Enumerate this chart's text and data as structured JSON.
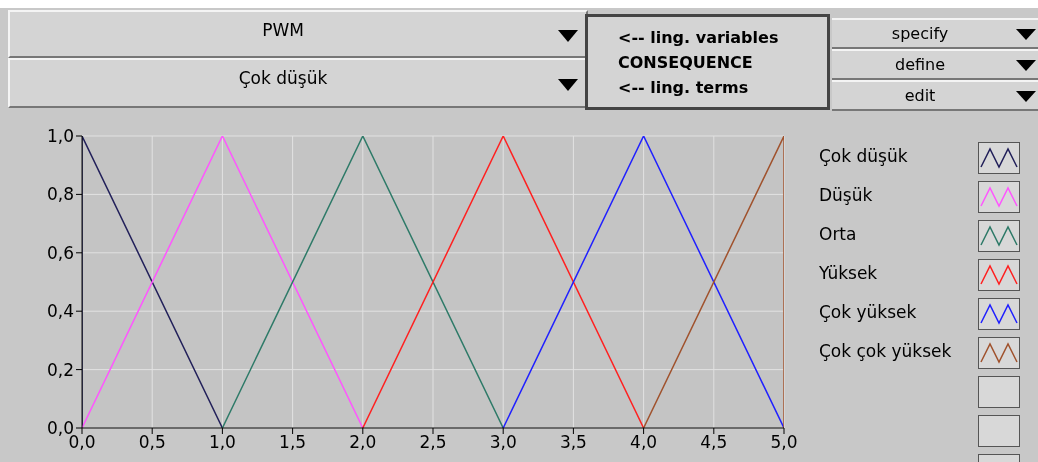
{
  "chart_data": {
    "type": "line",
    "annotations": [
      "PWM",
      "Çok düşük",
      "<-- ling. variables",
      "CONSEQUENCE",
      "<-- ling. terms",
      "specify",
      "define",
      "edit"
    ],
    "xlim": [
      0,
      5
    ],
    "xticks": [
      {
        "value": 0,
        "label": "0,0"
      },
      {
        "value": 0.5,
        "label": "0,5"
      },
      {
        "value": 1,
        "label": "1,0"
      },
      {
        "value": 1.5,
        "label": "1,5"
      },
      {
        "value": 2,
        "label": "2,0"
      },
      {
        "value": 2.5,
        "label": "2,5"
      },
      {
        "value": 3,
        "label": "3,0"
      },
      {
        "value": 3.5,
        "label": "3,5"
      },
      {
        "value": 4,
        "label": "4,0"
      },
      {
        "value": 4.5,
        "label": "4,5"
      },
      {
        "value": 5,
        "label": "5,0"
      }
    ],
    "ylim": [
      0,
      1
    ],
    "yticks": [
      {
        "value": 0,
        "label": "0,0"
      },
      {
        "value": 0.2,
        "label": "0,2"
      },
      {
        "value": 0.4,
        "label": "0,4"
      },
      {
        "value": 0.6,
        "label": "0,6"
      },
      {
        "value": 0.8,
        "label": "0,8"
      },
      {
        "value": 1,
        "label": "1,0"
      }
    ],
    "grid": true,
    "legend": "right",
    "marker": "none",
    "line_style": "solid",
    "series": [
      {
        "name": "Çok düşük",
        "color": "#22205a",
        "x": [
          0,
          0,
          1
        ],
        "values": [
          0,
          1,
          0
        ]
      },
      {
        "name": "Düşük",
        "color": "#ff55ff",
        "x": [
          0,
          1,
          2
        ],
        "values": [
          0,
          1,
          0
        ]
      },
      {
        "name": "Orta",
        "color": "#2e7a68",
        "x": [
          1,
          2,
          3
        ],
        "values": [
          0,
          1,
          0
        ]
      },
      {
        "name": "Yüksek",
        "color": "#ff2020",
        "x": [
          2,
          3,
          4
        ],
        "values": [
          0,
          1,
          0
        ]
      },
      {
        "name": "Çok yüksek",
        "color": "#2020ff",
        "x": [
          3,
          4,
          5
        ],
        "values": [
          0,
          1,
          0
        ]
      },
      {
        "name": "Çok çok yüksek",
        "color": "#a0522d",
        "x": [
          4,
          5,
          5
        ],
        "values": [
          0,
          1,
          0
        ]
      }
    ]
  }
}
